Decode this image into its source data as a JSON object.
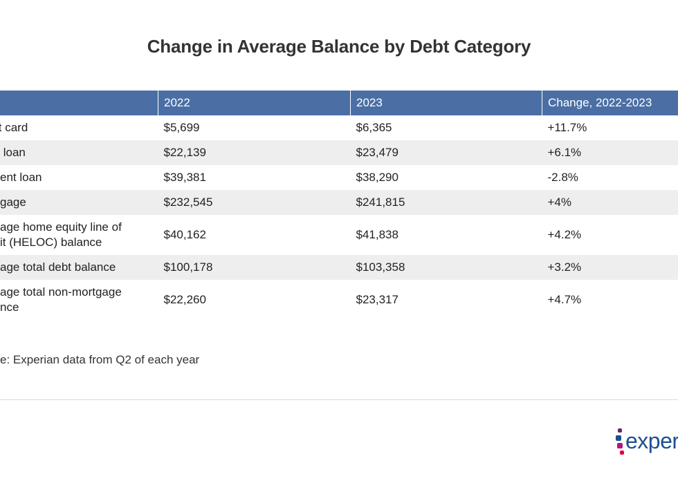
{
  "chart_data": {
    "type": "table",
    "title": "Change in Average Balance by Debt Category",
    "columns": [
      "",
      "2022",
      "2023",
      "Change, 2022-2023"
    ],
    "rows": [
      {
        "category": "it card",
        "v2022": "$5,699",
        "v2023": "$6,365",
        "change": "+11.7%"
      },
      {
        "category": " loan",
        "v2022": "$22,139",
        "v2023": "$23,479",
        "change": "+6.1%"
      },
      {
        "category": "ent loan",
        "v2022": "$39,381",
        "v2023": "$38,290",
        "change": "-2.8%"
      },
      {
        "category": "gage",
        "v2022": "$232,545",
        "v2023": "$241,815",
        "change": "+4%"
      },
      {
        "category_lines": [
          "age home equity line of",
          "it (HELOC) balance"
        ],
        "v2022": "$40,162",
        "v2023": "$41,838",
        "change": "+4.2%"
      },
      {
        "category": "age total debt balance",
        "v2022": "$100,178",
        "v2023": "$103,358",
        "change": "+3.2%"
      },
      {
        "category_lines": [
          "age total non-mortgage",
          "nce"
        ],
        "v2022": "$22,260",
        "v2023": "$23,317",
        "change": "+4.7%"
      }
    ],
    "source": "e: Experian data from Q2 of each year"
  },
  "logo": {
    "text": "experi"
  },
  "colors": {
    "header_bg": "#4b6fa5",
    "stripe_bg": "#eeeeee",
    "logo_blue": "#1d4f91"
  }
}
